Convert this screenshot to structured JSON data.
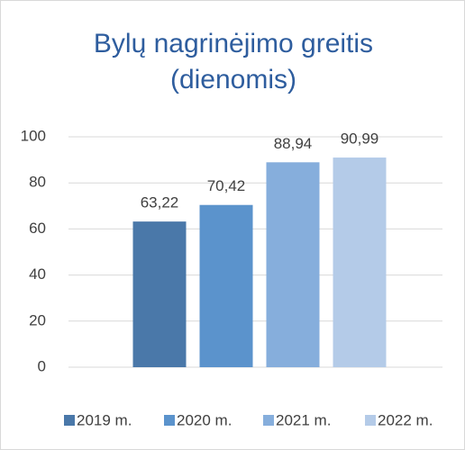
{
  "chart_data": {
    "type": "bar",
    "title": "Bylų nagrinėjimo greitis (dienomis)",
    "categories": [
      "2019 m.",
      "2020 m.",
      "2021 m.",
      "2022 m."
    ],
    "values": [
      63.22,
      70.42,
      88.94,
      90.99
    ],
    "value_labels": [
      "63,22",
      "70,42",
      "88,94",
      "90,99"
    ],
    "colors": [
      "#4a78a9",
      "#5b93cc",
      "#86aedc",
      "#b4cbe8"
    ],
    "ylim": [
      0,
      100
    ],
    "yticks": [
      0,
      20,
      40,
      60,
      80,
      100
    ],
    "grid": true,
    "legend": "bottom"
  }
}
